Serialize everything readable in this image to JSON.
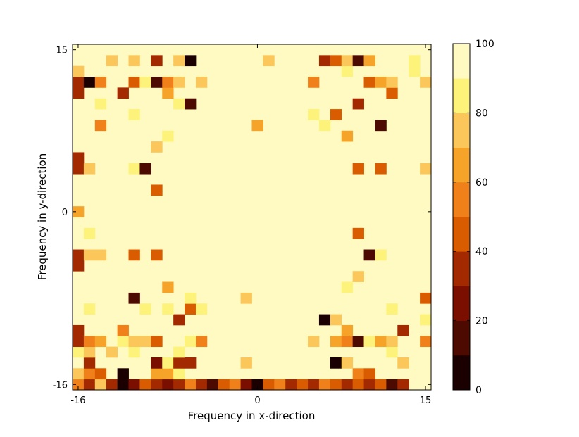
{
  "chart_data": {
    "type": "heatmap",
    "xlabel": "Frequency in x-direction",
    "ylabel": "Frequency in y-direction",
    "xlim": [
      -16,
      15
    ],
    "ylim": [
      -16,
      15
    ],
    "x_ticks": [
      -16,
      0,
      15
    ],
    "y_ticks": [
      -16,
      0,
      15
    ],
    "x_tick_labels": [
      "-16",
      "0",
      "15"
    ],
    "y_tick_labels": [
      "-16",
      "0",
      "15"
    ],
    "colorbar": {
      "min": 0,
      "max": 100,
      "ticks": [
        0,
        20,
        40,
        60,
        80,
        100
      ],
      "tick_labels": [
        "0",
        "20",
        "40",
        "60",
        "80",
        "100"
      ],
      "levels": 10,
      "colors": [
        "#1a0000",
        "#4d0a00",
        "#7a0f00",
        "#a32a00",
        "#d95c00",
        "#f0811a",
        "#f5a329",
        "#fbc75a",
        "#fdf27a",
        "#fffac2"
      ]
    },
    "background_value": 100,
    "cells": [
      [
        -16,
        -16,
        50
      ],
      [
        -15,
        -16,
        30
      ],
      [
        -14,
        -16,
        75
      ],
      [
        -13,
        -16,
        35
      ],
      [
        -12,
        -16,
        5
      ],
      [
        -11,
        -16,
        25
      ],
      [
        -10,
        -16,
        45
      ],
      [
        -9,
        -16,
        35
      ],
      [
        -8,
        -16,
        25
      ],
      [
        -7,
        -16,
        35
      ],
      [
        -6,
        -16,
        50
      ],
      [
        -5,
        -16,
        35
      ],
      [
        -4,
        -16,
        15
      ],
      [
        -3,
        -16,
        45
      ],
      [
        -2,
        -16,
        55
      ],
      [
        -1,
        -16,
        25
      ],
      [
        0,
        -16,
        5
      ],
      [
        1,
        -16,
        45
      ],
      [
        2,
        -16,
        55
      ],
      [
        3,
        -16,
        35
      ],
      [
        4,
        -16,
        45
      ],
      [
        5,
        -16,
        35
      ],
      [
        6,
        -16,
        55
      ],
      [
        7,
        -16,
        45
      ],
      [
        8,
        -16,
        35
      ],
      [
        9,
        -16,
        45
      ],
      [
        10,
        -16,
        35
      ],
      [
        11,
        -16,
        45
      ],
      [
        12,
        -16,
        15
      ],
      [
        13,
        -16,
        35
      ],
      [
        -16,
        -15,
        75
      ],
      [
        -15,
        -15,
        55
      ],
      [
        -14,
        -15,
        45
      ],
      [
        -12,
        -15,
        5
      ],
      [
        -9,
        -15,
        65
      ],
      [
        -8,
        -15,
        65
      ],
      [
        -7,
        -15,
        85
      ],
      [
        9,
        -15,
        55
      ],
      [
        10,
        -15,
        45
      ],
      [
        -15,
        -14,
        35
      ],
      [
        -9,
        -14,
        25
      ],
      [
        -8,
        -14,
        85
      ],
      [
        -7,
        -14,
        35
      ],
      [
        -6,
        -14,
        35
      ],
      [
        -1,
        -14,
        75
      ],
      [
        7,
        -14,
        5
      ],
      [
        8,
        -14,
        75
      ],
      [
        13,
        -14,
        75
      ],
      [
        -16,
        -13,
        85
      ],
      [
        -15,
        -13,
        75
      ],
      [
        -13,
        -13,
        75
      ],
      [
        -11,
        -13,
        85
      ],
      [
        -7,
        -13,
        85
      ],
      [
        12,
        -13,
        85
      ],
      [
        -16,
        -12,
        35
      ],
      [
        -15,
        -12,
        55
      ],
      [
        -14,
        -12,
        65
      ],
      [
        -12,
        -12,
        85
      ],
      [
        -11,
        -12,
        75
      ],
      [
        -10,
        -12,
        75
      ],
      [
        -9,
        -12,
        45
      ],
      [
        -6,
        -12,
        85
      ],
      [
        -5,
        -12,
        55
      ],
      [
        5,
        -12,
        75
      ],
      [
        7,
        -12,
        65
      ],
      [
        8,
        -12,
        55
      ],
      [
        9,
        -12,
        15
      ],
      [
        10,
        -12,
        85
      ],
      [
        11,
        -12,
        65
      ],
      [
        12,
        -12,
        75
      ],
      [
        15,
        -12,
        55
      ],
      [
        -16,
        -11,
        35
      ],
      [
        -12,
        -11,
        55
      ],
      [
        8,
        -11,
        65
      ],
      [
        13,
        -11,
        35
      ],
      [
        -7,
        -10,
        35
      ],
      [
        6,
        -10,
        5
      ],
      [
        7,
        -10,
        75
      ],
      [
        15,
        -10,
        85
      ],
      [
        -15,
        -9,
        85
      ],
      [
        -10,
        -9,
        85
      ],
      [
        -8,
        -9,
        85
      ],
      [
        -6,
        -9,
        45
      ],
      [
        -5,
        -9,
        85
      ],
      [
        12,
        -9,
        85
      ],
      [
        -11,
        -8,
        15
      ],
      [
        -6,
        -8,
        85
      ],
      [
        -1,
        -8,
        75
      ],
      [
        15,
        -8,
        45
      ],
      [
        -8,
        -7,
        65
      ],
      [
        8,
        -7,
        85
      ],
      [
        9,
        -6,
        75
      ],
      [
        -16,
        -5,
        35
      ],
      [
        -16,
        -4,
        35
      ],
      [
        -15,
        -4,
        75
      ],
      [
        -14,
        -4,
        75
      ],
      [
        -11,
        -4,
        45
      ],
      [
        -9,
        -4,
        45
      ],
      [
        10,
        -4,
        15
      ],
      [
        11,
        -4,
        85
      ],
      [
        -15,
        -2,
        85
      ],
      [
        9,
        -2,
        45
      ],
      [
        -16,
        0,
        60
      ],
      [
        -9,
        2,
        45
      ],
      [
        -16,
        4,
        35
      ],
      [
        -15,
        4,
        75
      ],
      [
        -11,
        4,
        85
      ],
      [
        -10,
        4,
        15
      ],
      [
        9,
        4,
        45
      ],
      [
        11,
        4,
        45
      ],
      [
        15,
        4,
        75
      ],
      [
        -16,
        5,
        35
      ],
      [
        -9,
        6,
        75
      ],
      [
        -8,
        7,
        85
      ],
      [
        8,
        7,
        65
      ],
      [
        -14,
        8,
        55
      ],
      [
        0,
        8,
        65
      ],
      [
        6,
        8,
        85
      ],
      [
        11,
        8,
        15
      ],
      [
        -11,
        9,
        85
      ],
      [
        5,
        9,
        85
      ],
      [
        7,
        9,
        45
      ],
      [
        -14,
        10,
        85
      ],
      [
        -7,
        10,
        85
      ],
      [
        -6,
        10,
        15
      ],
      [
        9,
        10,
        35
      ],
      [
        -16,
        11,
        35
      ],
      [
        -12,
        11,
        35
      ],
      [
        -8,
        11,
        65
      ],
      [
        12,
        11,
        45
      ],
      [
        -16,
        12,
        35
      ],
      [
        -15,
        12,
        5
      ],
      [
        -14,
        12,
        55
      ],
      [
        -11,
        12,
        45
      ],
      [
        -10,
        12,
        85
      ],
      [
        -9,
        12,
        15
      ],
      [
        -8,
        12,
        55
      ],
      [
        -7,
        12,
        75
      ],
      [
        -5,
        12,
        75
      ],
      [
        5,
        12,
        55
      ],
      [
        7,
        12,
        95
      ],
      [
        10,
        12,
        45
      ],
      [
        11,
        12,
        65
      ],
      [
        12,
        12,
        75
      ],
      [
        15,
        12,
        75
      ],
      [
        -16,
        13,
        75
      ],
      [
        8,
        13,
        85
      ],
      [
        14,
        13,
        85
      ],
      [
        -13,
        14,
        75
      ],
      [
        -11,
        14,
        75
      ],
      [
        -9,
        14,
        35
      ],
      [
        -7,
        14,
        75
      ],
      [
        -6,
        14,
        5
      ],
      [
        1,
        14,
        75
      ],
      [
        6,
        14,
        35
      ],
      [
        7,
        14,
        45
      ],
      [
        8,
        14,
        75
      ],
      [
        9,
        14,
        15
      ],
      [
        10,
        14,
        65
      ],
      [
        14,
        14,
        85
      ]
    ]
  }
}
